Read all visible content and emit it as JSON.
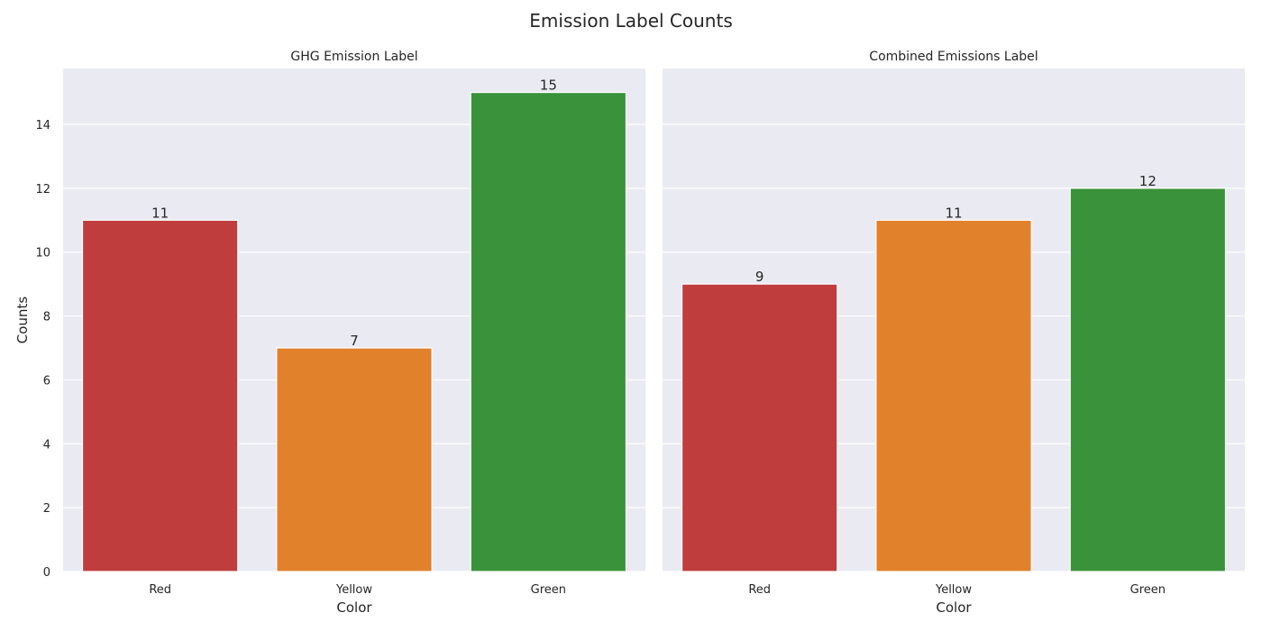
{
  "figure": {
    "title": "Emission Label Counts"
  },
  "style": {
    "panel_background": "#EAEAF2",
    "grid_color": "#FFFFFF",
    "text_color": "#262626",
    "bar_edge_color": "#FFFFFF"
  },
  "chart_data": [
    {
      "type": "bar",
      "title": "GHG Emission Label",
      "xlabel": "Color",
      "ylabel": "Counts",
      "categories": [
        "Red",
        "Yellow",
        "Green"
      ],
      "values": [
        11,
        7,
        15
      ],
      "bar_labels": [
        "11",
        "7",
        "15"
      ],
      "colors": [
        "#C03D3E",
        "#E1812C",
        "#3A923A"
      ],
      "ylim": [
        0,
        15.75
      ],
      "yticks": [
        0,
        2,
        4,
        6,
        8,
        10,
        12,
        14
      ],
      "ytick_labels": [
        "0",
        "2",
        "4",
        "6",
        "8",
        "10",
        "12",
        "14"
      ],
      "grid": true,
      "show_ytick_labels": true
    },
    {
      "type": "bar",
      "title": "Combined Emissions Label",
      "xlabel": "Color",
      "ylabel": "",
      "categories": [
        "Red",
        "Yellow",
        "Green"
      ],
      "values": [
        9,
        11,
        12
      ],
      "bar_labels": [
        "9",
        "11",
        "12"
      ],
      "colors": [
        "#C03D3E",
        "#E1812C",
        "#3A923A"
      ],
      "ylim": [
        0,
        15.75
      ],
      "yticks": [
        0,
        2,
        4,
        6,
        8,
        10,
        12,
        14
      ],
      "ytick_labels": [],
      "grid": true,
      "show_ytick_labels": false
    }
  ]
}
